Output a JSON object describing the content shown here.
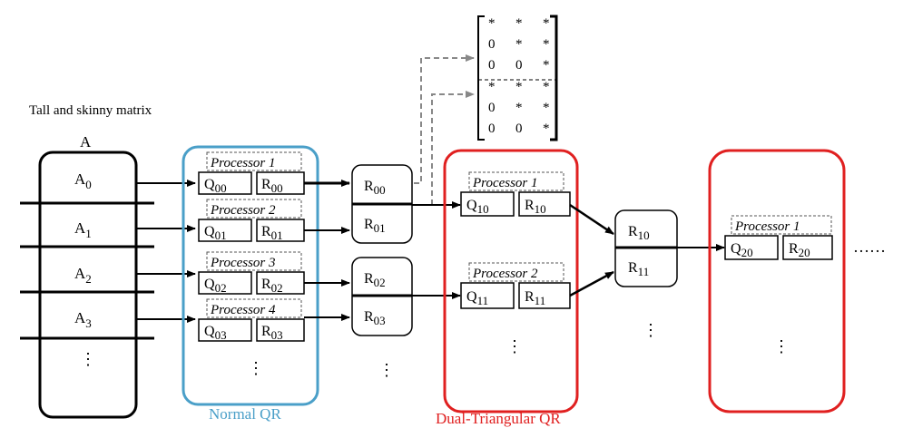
{
  "caption": "Tall and skinny matrix",
  "matrix_label": "A",
  "blocks": [
    {
      "base": "A",
      "sub": "0"
    },
    {
      "base": "A",
      "sub": "1"
    },
    {
      "base": "A",
      "sub": "2"
    },
    {
      "base": "A",
      "sub": "3"
    }
  ],
  "ellipsis_v": "⋮",
  "ellipsis_h": "……",
  "normal_qr": {
    "label": "Normal QR",
    "color": "#4a9fc8",
    "processors": [
      {
        "name": "Processor 1",
        "q": "00",
        "r": "00"
      },
      {
        "name": "Processor 2",
        "q": "01",
        "r": "01"
      },
      {
        "name": "Processor 3",
        "q": "02",
        "r": "02"
      },
      {
        "name": "Processor 4",
        "q": "03",
        "r": "03"
      }
    ]
  },
  "r_pairs": [
    {
      "top": "00",
      "bottom": "01"
    },
    {
      "top": "02",
      "bottom": "03"
    }
  ],
  "stacked_matrix": {
    "rows": [
      [
        "*",
        "*",
        "*"
      ],
      [
        "0",
        "*",
        "*"
      ],
      [
        "0",
        "0",
        "*"
      ],
      [
        "*",
        "*",
        "*"
      ],
      [
        "0",
        "*",
        "*"
      ],
      [
        "0",
        "0",
        "*"
      ]
    ]
  },
  "dual_qr": {
    "label": "Dual-Triangular QR",
    "color": "#e02020",
    "processors": [
      {
        "name": "Processor 1",
        "q": "10",
        "r": "10"
      },
      {
        "name": "Processor 2",
        "q": "11",
        "r": "11"
      }
    ]
  },
  "r_pair_2": {
    "top": "10",
    "bottom": "11"
  },
  "third_stage": {
    "processors": [
      {
        "name": "Processor 1",
        "q": "20",
        "r": "20"
      }
    ]
  }
}
